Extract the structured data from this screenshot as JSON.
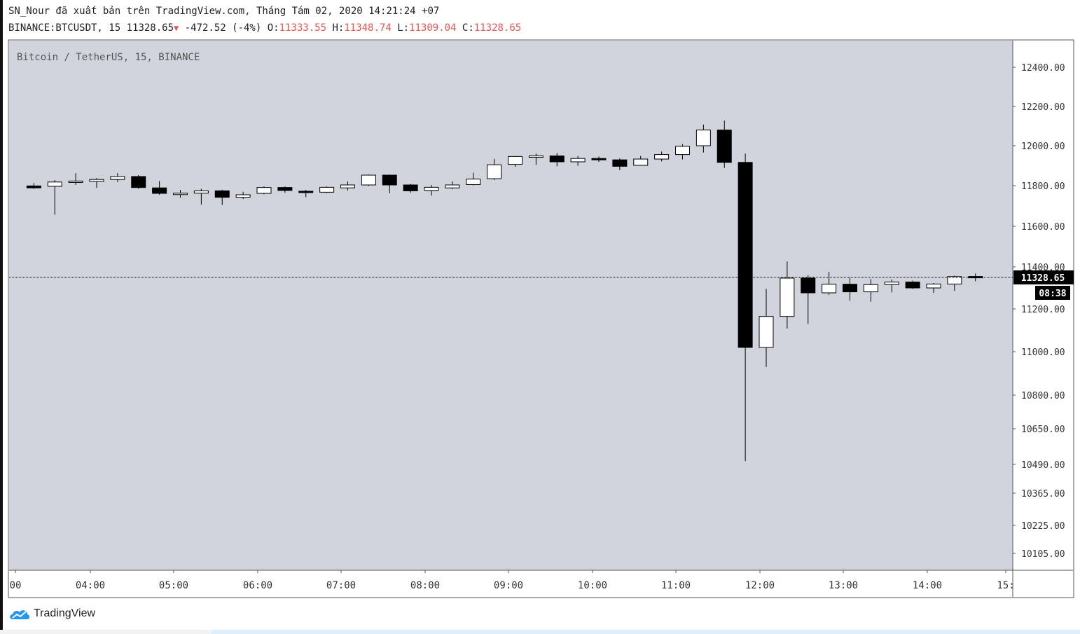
{
  "header": {
    "line1": "SN_Nour đã xuất bản trên TradingView.com, Tháng Tám 02, 2020 14:21:24 +07",
    "symbol": "BINANCE:BTCUSDT, 15",
    "last": "11328.65",
    "down_arrow": "▼",
    "change": "-472.52 (-4%)",
    "o_label": "O:",
    "o_value": "11333.55",
    "h_label": "H:",
    "h_value": "11348.74",
    "l_label": "L:",
    "l_value": "11309.04",
    "c_label": "C:",
    "c_value": "11328.65"
  },
  "chart_data": {
    "type": "candlestick",
    "title": "Bitcoin / TetherUS, 15, BINANCE",
    "x_tick_labels": [
      "00",
      "04:00",
      "05:00",
      "06:00",
      "07:00",
      "08:00",
      "09:00",
      "10:00",
      "11:00",
      "12:00",
      "13:00",
      "14:00",
      "15:"
    ],
    "y_tick_labels": [
      "12400.00",
      "12200.00",
      "12000.00",
      "11800.00",
      "11600.00",
      "11400.00",
      "11200.00",
      "11000.00",
      "10800.00",
      "10650.00",
      "10490.00",
      "10365.00",
      "10225.00",
      "10105.00"
    ],
    "ylim": [
      10060,
      12510
    ],
    "last_price_label": "11328.65",
    "countdown_label": "08:38",
    "last_price": 11328.65,
    "candles": [
      {
        "time": "03:15",
        "o": 11795,
        "h": 11810,
        "l": 11780,
        "c": 11785
      },
      {
        "time": "03:30",
        "o": 11793,
        "h": 11825,
        "l": 11648,
        "c": 11815
      },
      {
        "time": "03:45",
        "o": 11818,
        "h": 11860,
        "l": 11800,
        "c": 11820
      },
      {
        "time": "04:00",
        "o": 11818,
        "h": 11835,
        "l": 11785,
        "c": 11828
      },
      {
        "time": "04:15",
        "o": 11828,
        "h": 11860,
        "l": 11815,
        "c": 11843
      },
      {
        "time": "04:30",
        "o": 11843,
        "h": 11850,
        "l": 11780,
        "c": 11787
      },
      {
        "time": "04:45",
        "o": 11785,
        "h": 11820,
        "l": 11750,
        "c": 11757
      },
      {
        "time": "05:00",
        "o": 11758,
        "h": 11775,
        "l": 11735,
        "c": 11758
      },
      {
        "time": "05:15",
        "o": 11758,
        "h": 11780,
        "l": 11700,
        "c": 11770
      },
      {
        "time": "05:30",
        "o": 11770,
        "h": 11775,
        "l": 11698,
        "c": 11737
      },
      {
        "time": "05:45",
        "o": 11737,
        "h": 11765,
        "l": 11728,
        "c": 11750
      },
      {
        "time": "06:00",
        "o": 11757,
        "h": 11793,
        "l": 11752,
        "c": 11787
      },
      {
        "time": "06:15",
        "o": 11787,
        "h": 11792,
        "l": 11760,
        "c": 11772
      },
      {
        "time": "06:30",
        "o": 11768,
        "h": 11775,
        "l": 11738,
        "c": 11763
      },
      {
        "time": "06:45",
        "o": 11763,
        "h": 11793,
        "l": 11758,
        "c": 11788
      },
      {
        "time": "07:00",
        "o": 11785,
        "h": 11818,
        "l": 11772,
        "c": 11800
      },
      {
        "time": "07:15",
        "o": 11800,
        "h": 11853,
        "l": 11795,
        "c": 11850
      },
      {
        "time": "07:30",
        "o": 11850,
        "h": 11853,
        "l": 11758,
        "c": 11800
      },
      {
        "time": "07:45",
        "o": 11800,
        "h": 11805,
        "l": 11760,
        "c": 11770
      },
      {
        "time": "08:00",
        "o": 11772,
        "h": 11800,
        "l": 11745,
        "c": 11788
      },
      {
        "time": "08:15",
        "o": 11785,
        "h": 11818,
        "l": 11778,
        "c": 11800
      },
      {
        "time": "08:30",
        "o": 11802,
        "h": 11863,
        "l": 11798,
        "c": 11830
      },
      {
        "time": "08:45",
        "o": 11832,
        "h": 11933,
        "l": 11825,
        "c": 11903
      },
      {
        "time": "09:00",
        "o": 11905,
        "h": 11948,
        "l": 11893,
        "c": 11945
      },
      {
        "time": "09:15",
        "o": 11943,
        "h": 11960,
        "l": 11903,
        "c": 11948
      },
      {
        "time": "09:30",
        "o": 11948,
        "h": 11963,
        "l": 11895,
        "c": 11918
      },
      {
        "time": "09:45",
        "o": 11918,
        "h": 11948,
        "l": 11898,
        "c": 11935
      },
      {
        "time": "10:00",
        "o": 11935,
        "h": 11945,
        "l": 11918,
        "c": 11928
      },
      {
        "time": "10:15",
        "o": 11928,
        "h": 11935,
        "l": 11875,
        "c": 11895
      },
      {
        "time": "10:30",
        "o": 11900,
        "h": 11948,
        "l": 11898,
        "c": 11932
      },
      {
        "time": "10:45",
        "o": 11932,
        "h": 11970,
        "l": 11920,
        "c": 11955
      },
      {
        "time": "11:00",
        "o": 11955,
        "h": 12008,
        "l": 11930,
        "c": 11997
      },
      {
        "time": "11:15",
        "o": 12000,
        "h": 12108,
        "l": 11965,
        "c": 12080
      },
      {
        "time": "11:30",
        "o": 12080,
        "h": 12128,
        "l": 11887,
        "c": 11915
      },
      {
        "time": "11:45",
        "o": 11915,
        "h": 11960,
        "l": 10505,
        "c": 11020
      },
      {
        "time": "12:00",
        "o": 11020,
        "h": 11270,
        "l": 10930,
        "c": 11165
      },
      {
        "time": "12:15",
        "o": 11165,
        "h": 11410,
        "l": 11108,
        "c": 11325
      },
      {
        "time": "12:30",
        "o": 11325,
        "h": 11340,
        "l": 11130,
        "c": 11250
      },
      {
        "time": "12:45",
        "o": 11250,
        "h": 11357,
        "l": 11240,
        "c": 11294
      },
      {
        "time": "13:00",
        "o": 11294,
        "h": 11330,
        "l": 11210,
        "c": 11255
      },
      {
        "time": "13:15",
        "o": 11255,
        "h": 11320,
        "l": 11205,
        "c": 11292
      },
      {
        "time": "13:30",
        "o": 11292,
        "h": 11318,
        "l": 11252,
        "c": 11305
      },
      {
        "time": "13:45",
        "o": 11305,
        "h": 11312,
        "l": 11270,
        "c": 11275
      },
      {
        "time": "14:00",
        "o": 11275,
        "h": 11300,
        "l": 11250,
        "c": 11295
      },
      {
        "time": "14:15",
        "o": 11295,
        "h": 11338,
        "l": 11260,
        "c": 11333
      },
      {
        "time": "14:30",
        "o": 11333.55,
        "h": 11348.74,
        "l": 11309.04,
        "c": 11328.65
      }
    ]
  },
  "footer": {
    "brand": "TradingView"
  },
  "colors": {
    "plot_bg": "#d1d4dc",
    "up": "#ffffff",
    "down": "#000000",
    "red": "#ef5350"
  }
}
